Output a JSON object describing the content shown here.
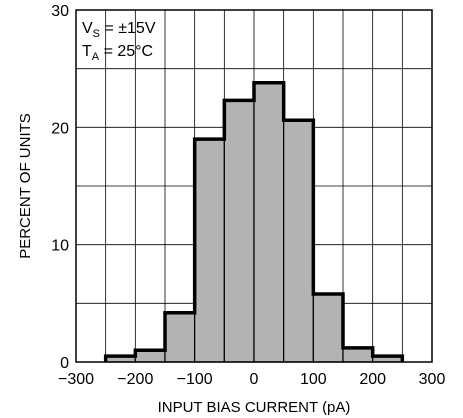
{
  "chart_data": {
    "type": "histogram",
    "xlabel": "INPUT BIAS CURRENT (pA)",
    "ylabel": "PERCENT OF UNITS",
    "xlim": [
      -300,
      300
    ],
    "ylim": [
      0,
      30
    ],
    "xticks": [
      -300,
      -200,
      -100,
      0,
      100,
      200,
      300
    ],
    "xtick_labels": [
      "−300",
      "−200",
      "−100",
      "0",
      "100",
      "200",
      "300"
    ],
    "yticks": [
      0,
      10,
      20,
      30
    ],
    "ytick_labels": [
      "0",
      "10",
      "20",
      "30"
    ],
    "grid": true,
    "bins": [
      {
        "x0": -250,
        "x1": -200,
        "value": 0.5
      },
      {
        "x0": -200,
        "x1": -150,
        "value": 1.0
      },
      {
        "x0": -150,
        "x1": -100,
        "value": 4.2
      },
      {
        "x0": -100,
        "x1": -50,
        "value": 19.0
      },
      {
        "x0": -50,
        "x1": 0,
        "value": 22.3
      },
      {
        "x0": 0,
        "x1": 50,
        "value": 23.8
      },
      {
        "x0": 50,
        "x1": 100,
        "value": 20.6
      },
      {
        "x0": 100,
        "x1": 150,
        "value": 5.8
      },
      {
        "x0": 150,
        "x1": 200,
        "value": 1.2
      },
      {
        "x0": 200,
        "x1": 250,
        "value": 0.5
      }
    ],
    "annotation": {
      "line1_main": "V",
      "line1_sub": "S",
      "line1_rest": " = ±15V",
      "line2_main": "T",
      "line2_sub": "A",
      "line2_rest": " = 25°C"
    },
    "colors": {
      "bar_fill": "#b3b3b3",
      "bar_stroke": "#000000",
      "grid": "#000000"
    }
  }
}
